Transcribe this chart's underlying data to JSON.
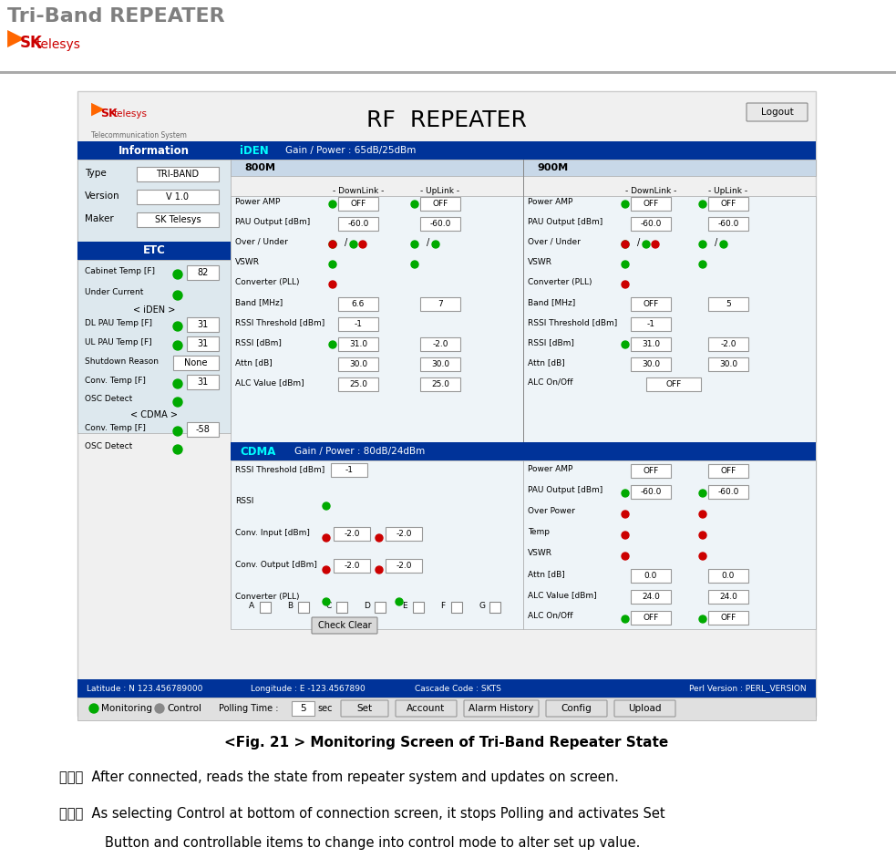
{
  "title_text": "Tri-Band REPEATER",
  "title_color": "#808080",
  "fig_caption": "<Fig. 21 > Monitoring Screen of Tri-Band Repeater State",
  "text_line6": "(６)  After connected, reads the state from repeater system and updates on screen.",
  "text_line7a": "(７)  As selecting Control at bottom of connection screen, it stops Polling and activates Set",
  "text_line7b": "        Button and controllable items to change into control mode to alter set up value.",
  "bg_color": "#ffffff",
  "header_line_color": "#aaaaaa"
}
